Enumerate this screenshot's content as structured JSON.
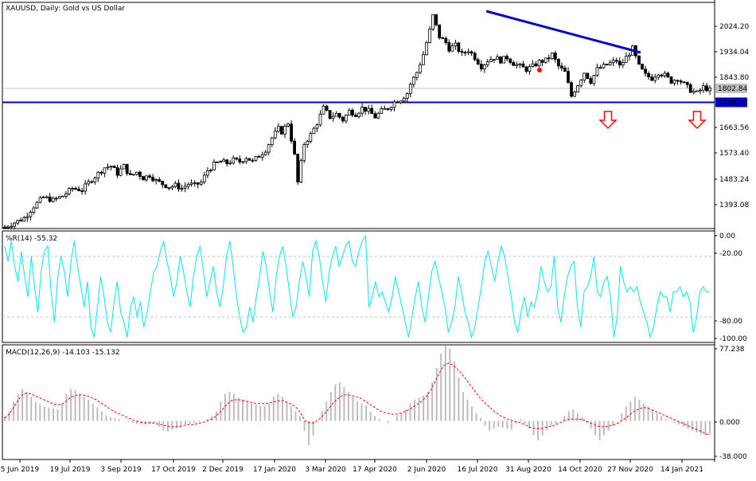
{
  "chart_data": [
    {
      "type": "candlestick",
      "title": "XAUUSD, Daily:  Gold vs US Dollar",
      "x_tick_labels": [
        "5 Jun 2019",
        "19 Jul 2019",
        "3 Sep 2019",
        "17 Oct 2019",
        "2 Dec 2019",
        "17 Jan 2020",
        "3 Mar 2020",
        "17 Apr 2020",
        "2 Jun 2020",
        "16 Jul 2020",
        "31 Aug 2020",
        "14 Oct 2020",
        "27 Nov 2020",
        "14 Jan 2021"
      ],
      "y_tick_labels": [
        "2024.20",
        "1934.04",
        "1843.80",
        "1663.56",
        "1573.40",
        "1483.24",
        "1393.08"
      ],
      "ylim": [
        1335,
        2095
      ],
      "last_price": "1802.84",
      "support_level": "1759.26",
      "support_value": 1759.26,
      "trendline": {
        "from": [
          "16 Jul 2020",
          2067
        ],
        "to": [
          "27 Nov 2020",
          1935
        ]
      },
      "arrows": [
        "down",
        "down"
      ],
      "close_path": [
        [
          0,
          1340
        ],
        [
          6,
          1370
        ],
        [
          9,
          1410
        ],
        [
          12,
          1440
        ],
        [
          15,
          1430
        ],
        [
          18,
          1445
        ],
        [
          21,
          1470
        ],
        [
          24,
          1465
        ],
        [
          27,
          1500
        ],
        [
          29,
          1520
        ],
        [
          31,
          1540
        ],
        [
          33,
          1545
        ],
        [
          35,
          1520
        ],
        [
          37,
          1545
        ],
        [
          39,
          1510
        ],
        [
          41,
          1525
        ],
        [
          43,
          1505
        ],
        [
          45,
          1515
        ],
        [
          47,
          1495
        ],
        [
          49,
          1485
        ],
        [
          51,
          1475
        ],
        [
          53,
          1480
        ],
        [
          55,
          1470
        ],
        [
          57,
          1485
        ],
        [
          59,
          1480
        ],
        [
          61,
          1490
        ],
        [
          63,
          1530
        ],
        [
          65,
          1550
        ],
        [
          67,
          1560
        ],
        [
          69,
          1555
        ],
        [
          71,
          1565
        ],
        [
          73,
          1560
        ],
        [
          75,
          1575
        ],
        [
          77,
          1560
        ],
        [
          79,
          1580
        ],
        [
          81,
          1600
        ],
        [
          83,
          1640
        ],
        [
          85,
          1670
        ],
        [
          86,
          1660
        ],
        [
          88,
          1690
        ],
        [
          90,
          1580
        ],
        [
          91,
          1490
        ],
        [
          93,
          1620
        ],
        [
          95,
          1650
        ],
        [
          97,
          1690
        ],
        [
          99,
          1740
        ],
        [
          101,
          1710
        ],
        [
          103,
          1720
        ],
        [
          105,
          1700
        ],
        [
          107,
          1730
        ],
        [
          109,
          1720
        ],
        [
          111,
          1740
        ],
        [
          113,
          1730
        ],
        [
          115,
          1710
        ],
        [
          117,
          1730
        ],
        [
          119,
          1740
        ],
        [
          121,
          1760
        ],
        [
          123,
          1770
        ],
        [
          125,
          1790
        ],
        [
          126,
          1820
        ],
        [
          128,
          1860
        ],
        [
          130,
          1920
        ],
        [
          132,
          2000
        ],
        [
          133,
          2050
        ],
        [
          135,
          1980
        ],
        [
          137,
          1960
        ],
        [
          138,
          1940
        ],
        [
          140,
          1950
        ],
        [
          142,
          1920
        ],
        [
          144,
          1935
        ],
        [
          146,
          1910
        ],
        [
          148,
          1880
        ],
        [
          150,
          1900
        ],
        [
          152,
          1910
        ],
        [
          154,
          1900
        ],
        [
          156,
          1910
        ],
        [
          158,
          1890
        ],
        [
          160,
          1880
        ],
        [
          162,
          1870
        ],
        [
          164,
          1880
        ],
        [
          166,
          1895
        ],
        [
          168,
          1900
        ],
        [
          170,
          1920
        ],
        [
          172,
          1880
        ],
        [
          174,
          1860
        ],
        [
          176,
          1780
        ],
        [
          178,
          1820
        ],
        [
          180,
          1860
        ],
        [
          182,
          1830
        ],
        [
          184,
          1870
        ],
        [
          186,
          1880
        ],
        [
          188,
          1890
        ],
        [
          190,
          1900
        ],
        [
          191,
          1880
        ],
        [
          193,
          1910
        ],
        [
          195,
          1940
        ],
        [
          197,
          1880
        ],
        [
          199,
          1850
        ],
        [
          201,
          1840
        ],
        [
          203,
          1860
        ],
        [
          205,
          1850
        ],
        [
          207,
          1830
        ],
        [
          209,
          1840
        ],
        [
          211,
          1820
        ],
        [
          213,
          1800
        ],
        [
          215,
          1790
        ],
        [
          217,
          1810
        ],
        [
          219,
          1800
        ]
      ]
    },
    {
      "type": "line",
      "indicator_label": "%R(14) -55.32",
      "y_tick_labels": [
        "0.00",
        "-20.00",
        "-80.00",
        "-100.00"
      ],
      "ylim": [
        -105,
        5
      ],
      "levels": [
        -20,
        -80
      ],
      "series": [
        {
          "color": "#00e5ee",
          "values": [
            -10,
            -25,
            -5,
            -30,
            -45,
            -15,
            -40,
            -60,
            -20,
            -50,
            -75,
            -35,
            -15,
            -10,
            -55,
            -85,
            -40,
            -20,
            -35,
            -60,
            -25,
            -5,
            -30,
            -50,
            -70,
            -45,
            -90,
            -100,
            -70,
            -40,
            -60,
            -85,
            -95,
            -65,
            -45,
            -75,
            -85,
            -100,
            -70,
            -60,
            -80,
            -65,
            -90,
            -75,
            -55,
            -35,
            -30,
            -15,
            -5,
            -25,
            -40,
            -60,
            -45,
            -20,
            -35,
            -55,
            -70,
            -40,
            -20,
            -10,
            -35,
            -60,
            -45,
            -30,
            -55,
            -70,
            -50,
            -20,
            -5,
            -30,
            -60,
            -80,
            -95,
            -90,
            -70,
            -85,
            -60,
            -40,
            -15,
            -30,
            -55,
            -75,
            -40,
            -20,
            -10,
            -30,
            -55,
            -80,
            -70,
            -45,
            -25,
            -40,
            -60,
            -15,
            -5,
            -20,
            -45,
            -65,
            -35,
            -20,
            -10,
            -30,
            -20,
            -10,
            -5,
            -25,
            -30,
            -15,
            -5,
            0,
            -70,
            -60,
            -45,
            -60,
            -55,
            -65,
            -75,
            -60,
            -40,
            -55,
            -70,
            -85,
            -100,
            -80,
            -60,
            -45,
            -70,
            -85,
            -60,
            -35,
            -25,
            -40,
            -55,
            -70,
            -95,
            -85,
            -70,
            -40,
            -55,
            -75,
            -85,
            -100,
            -90,
            -70,
            -50,
            -25,
            -15,
            -30,
            -45,
            -25,
            -10,
            -20,
            -40,
            -60,
            -85,
            -95,
            -75,
            -60,
            -80,
            -65,
            -70,
            -55,
            -30,
            -45,
            -55,
            -50,
            -20,
            -70,
            -85,
            -60,
            -40,
            -30,
            -25,
            -70,
            -90,
            -55,
            -50,
            -40,
            -20,
            -55,
            -60,
            -45,
            -40,
            -60,
            -100,
            -80,
            -30,
            -45,
            -55,
            -50,
            -55,
            -50,
            -65,
            -75,
            -85,
            -100,
            -90,
            -70,
            -55,
            -60,
            -60,
            -75,
            -55,
            -55,
            -50,
            -60,
            -55,
            -65,
            -95,
            -80,
            -55,
            -50,
            -55,
            -55
          ]
        }
      ]
    },
    {
      "type": "bar",
      "indicator_label": "MACD(12,26,9) -14.103 -15.132",
      "y_tick_labels": [
        "77.238",
        "0.000",
        "-38.000"
      ],
      "ylim": [
        -40,
        79
      ],
      "series": [
        {
          "name": "",
          "type": "bar",
          "color": "#bdbdbd",
          "values": [
            5,
            10,
            20,
            28,
            33,
            30,
            25,
            20,
            18,
            15,
            14,
            13,
            12,
            18,
            28,
            33,
            32,
            28,
            25,
            22,
            18,
            14,
            10,
            6,
            4,
            3,
            2,
            0,
            -1,
            -2,
            -3,
            -4,
            -4,
            -3,
            -2,
            -6,
            -10,
            -11,
            -9,
            -7,
            -6,
            -4,
            -3,
            -2,
            -1,
            0,
            2,
            5,
            10,
            20,
            28,
            30,
            28,
            24,
            22,
            20,
            18,
            17,
            16,
            16,
            18,
            25,
            28,
            25,
            20,
            15,
            10,
            5,
            -10,
            -25,
            -15,
            0,
            10,
            20,
            30,
            38,
            40,
            35,
            30,
            25,
            20,
            18,
            16,
            10,
            5,
            2,
            0,
            -2,
            0,
            5,
            8,
            12,
            18,
            22,
            24,
            26,
            30,
            40,
            55,
            70,
            78,
            75,
            62,
            45,
            30,
            22,
            15,
            8,
            3,
            -5,
            -10,
            -8,
            -6,
            -7,
            -8,
            -9,
            -3,
            2,
            -3,
            -8,
            -15,
            -20,
            -15,
            -10,
            -5,
            -3,
            0,
            5,
            10,
            12,
            8,
            4,
            -2,
            -8,
            -15,
            -20,
            -15,
            -10,
            -5,
            0,
            8,
            15,
            20,
            25,
            22,
            18,
            15,
            12,
            8,
            5,
            2,
            0,
            -2,
            -4,
            -6,
            -8,
            -10,
            -12,
            -14,
            -15,
            -14
          ]
        },
        {
          "name": "",
          "type": "line",
          "color": "#ff0000",
          "values": [
            3,
            7,
            14,
            21,
            27,
            29,
            28,
            26,
            24,
            22,
            20,
            18,
            17,
            17,
            20,
            24,
            26,
            27,
            27,
            26,
            24,
            22,
            19,
            16,
            13,
            10,
            8,
            6,
            4,
            2,
            0,
            -1,
            -2,
            -2,
            -2,
            -3,
            -4,
            -5,
            -6,
            -6,
            -6,
            -5,
            -4,
            -4,
            -3,
            -2,
            -1,
            1,
            3,
            7,
            12,
            17,
            21,
            22,
            22,
            21,
            20,
            19,
            18,
            18,
            18,
            19,
            20,
            21,
            21,
            19,
            17,
            14,
            8,
            0,
            -2,
            -2,
            1,
            5,
            10,
            16,
            21,
            25,
            27,
            27,
            26,
            25,
            23,
            20,
            17,
            14,
            11,
            9,
            8,
            7,
            7,
            8,
            10,
            12,
            15,
            18,
            21,
            26,
            33,
            42,
            51,
            58,
            60,
            58,
            54,
            49,
            43,
            37,
            31,
            25,
            20,
            16,
            12,
            8,
            5,
            3,
            1,
            0,
            -1,
            -3,
            -5,
            -7,
            -8,
            -8,
            -7,
            -6,
            -5,
            -3,
            -1,
            1,
            2,
            2,
            2,
            1,
            -1,
            -3,
            -5,
            -6,
            -6,
            -5,
            -4,
            -2,
            1,
            4,
            8,
            11,
            13,
            14,
            13,
            11,
            9,
            7,
            5,
            3,
            1,
            -1,
            -3,
            -5,
            -7,
            -9,
            -11,
            -13,
            -15
          ]
        }
      ]
    }
  ]
}
